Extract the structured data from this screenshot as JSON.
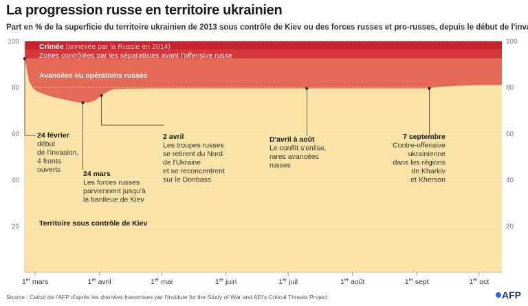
{
  "title": "La progression russe en territoire ukrainien",
  "subtitle": "Part en % de la superficie du territoire ukrainien de 2013 sous contrôle de Kiev ou des forces russes et pro-russes, depuis le début de l'invasion",
  "source": "Source : Calcul de l'AFP d'après les données transmises par l'Institute for the Study of War and AEI's Critical Threats Project",
  "logo": "AFP",
  "colors": {
    "crimea": "#c8242c",
    "separatists": "#d6383a",
    "advances": "#e46a57",
    "kiev": "#fbe3a8",
    "axis": "#cfcfcf",
    "leader": "#333333"
  },
  "chart_data": {
    "type": "area",
    "xlabel": "",
    "ylabel": "",
    "ylim": [
      0,
      100
    ],
    "yticks": [
      0,
      20,
      40,
      60,
      80,
      100
    ],
    "ytick_labels": [
      "",
      "20",
      "40",
      "60",
      "80",
      "100"
    ],
    "xlim": [
      "2022-02-24",
      "2022-10-12"
    ],
    "xticks": [
      {
        "date": "2022-03-01",
        "label": "1er mars"
      },
      {
        "date": "2022-04-01",
        "label": "1er avril"
      },
      {
        "date": "2022-05-01",
        "label": "1er mai"
      },
      {
        "date": "2022-06-01",
        "label": "1er juin"
      },
      {
        "date": "2022-07-01",
        "label": "1er juil"
      },
      {
        "date": "2022-08-01",
        "label": "1er août"
      },
      {
        "date": "2022-09-01",
        "label": "1er sept"
      },
      {
        "date": "2022-10-01",
        "label": "1er oct"
      }
    ],
    "series": [
      {
        "name": "Crimée",
        "name_suffix": "(annexée par la Russie en 2014)",
        "band": [
          96.3,
          100
        ]
      },
      {
        "name": "Zones contrôlées par les séparatistes avant l'offensive russe",
        "band": [
          92.5,
          96.3
        ]
      },
      {
        "name": "Avancées ou opérations russes",
        "band_top": 92.5
      },
      {
        "name": "Territoire sous contrôle de Kiev",
        "x": [
          "2022-02-24",
          "2022-02-26",
          "2022-02-28",
          "2022-03-02",
          "2022-03-05",
          "2022-03-08",
          "2022-03-12",
          "2022-03-16",
          "2022-03-20",
          "2022-03-24",
          "2022-03-27",
          "2022-03-30",
          "2022-04-02",
          "2022-04-05",
          "2022-04-08",
          "2022-04-15",
          "2022-05-01",
          "2022-06-01",
          "2022-07-01",
          "2022-08-01",
          "2022-09-01",
          "2022-09-07",
          "2022-09-12",
          "2022-09-20",
          "2022-10-01",
          "2022-10-12"
        ],
        "values": [
          92.5,
          83,
          79.6,
          78.3,
          77.2,
          76.3,
          75.4,
          74.6,
          73.8,
          73.4,
          73.6,
          74.5,
          76.5,
          78.3,
          79.3,
          79.5,
          79.6,
          79.6,
          79.6,
          79.6,
          79.6,
          79.6,
          80.3,
          80.7,
          81.0,
          81.1
        ]
      }
    ],
    "annotations": [
      {
        "date": "2022-02-24",
        "value": 92.5,
        "title": "24 février",
        "lines": [
          "début",
          "de l'invasion,",
          "4 fronts",
          "ouverts"
        ]
      },
      {
        "date": "2022-03-24",
        "value": 73.4,
        "title": "24 mars",
        "lines": [
          "Les forces russes",
          "parviennent jusqu'à",
          "la banlieue de Kiev"
        ]
      },
      {
        "date": "2022-04-02",
        "value": 76.5,
        "title": "2 avril",
        "lines": [
          "Les troupes russes",
          "se retirent du Nord",
          "de l'Ukraine",
          "et se reconcentrent",
          "sur le Donbass"
        ]
      },
      {
        "date": "2022-07-10",
        "value": 79.6,
        "title": "D'avril à août",
        "lines": [
          "Le conflit s'enlise,",
          "rares avancées",
          "russes"
        ]
      },
      {
        "date": "2022-09-07",
        "value": 79.6,
        "title": "7 septembre",
        "lines": [
          "Contre-offensive",
          "ukrainienne",
          "dans les régions",
          "de Kharkiv",
          "et Kherson"
        ]
      }
    ]
  }
}
